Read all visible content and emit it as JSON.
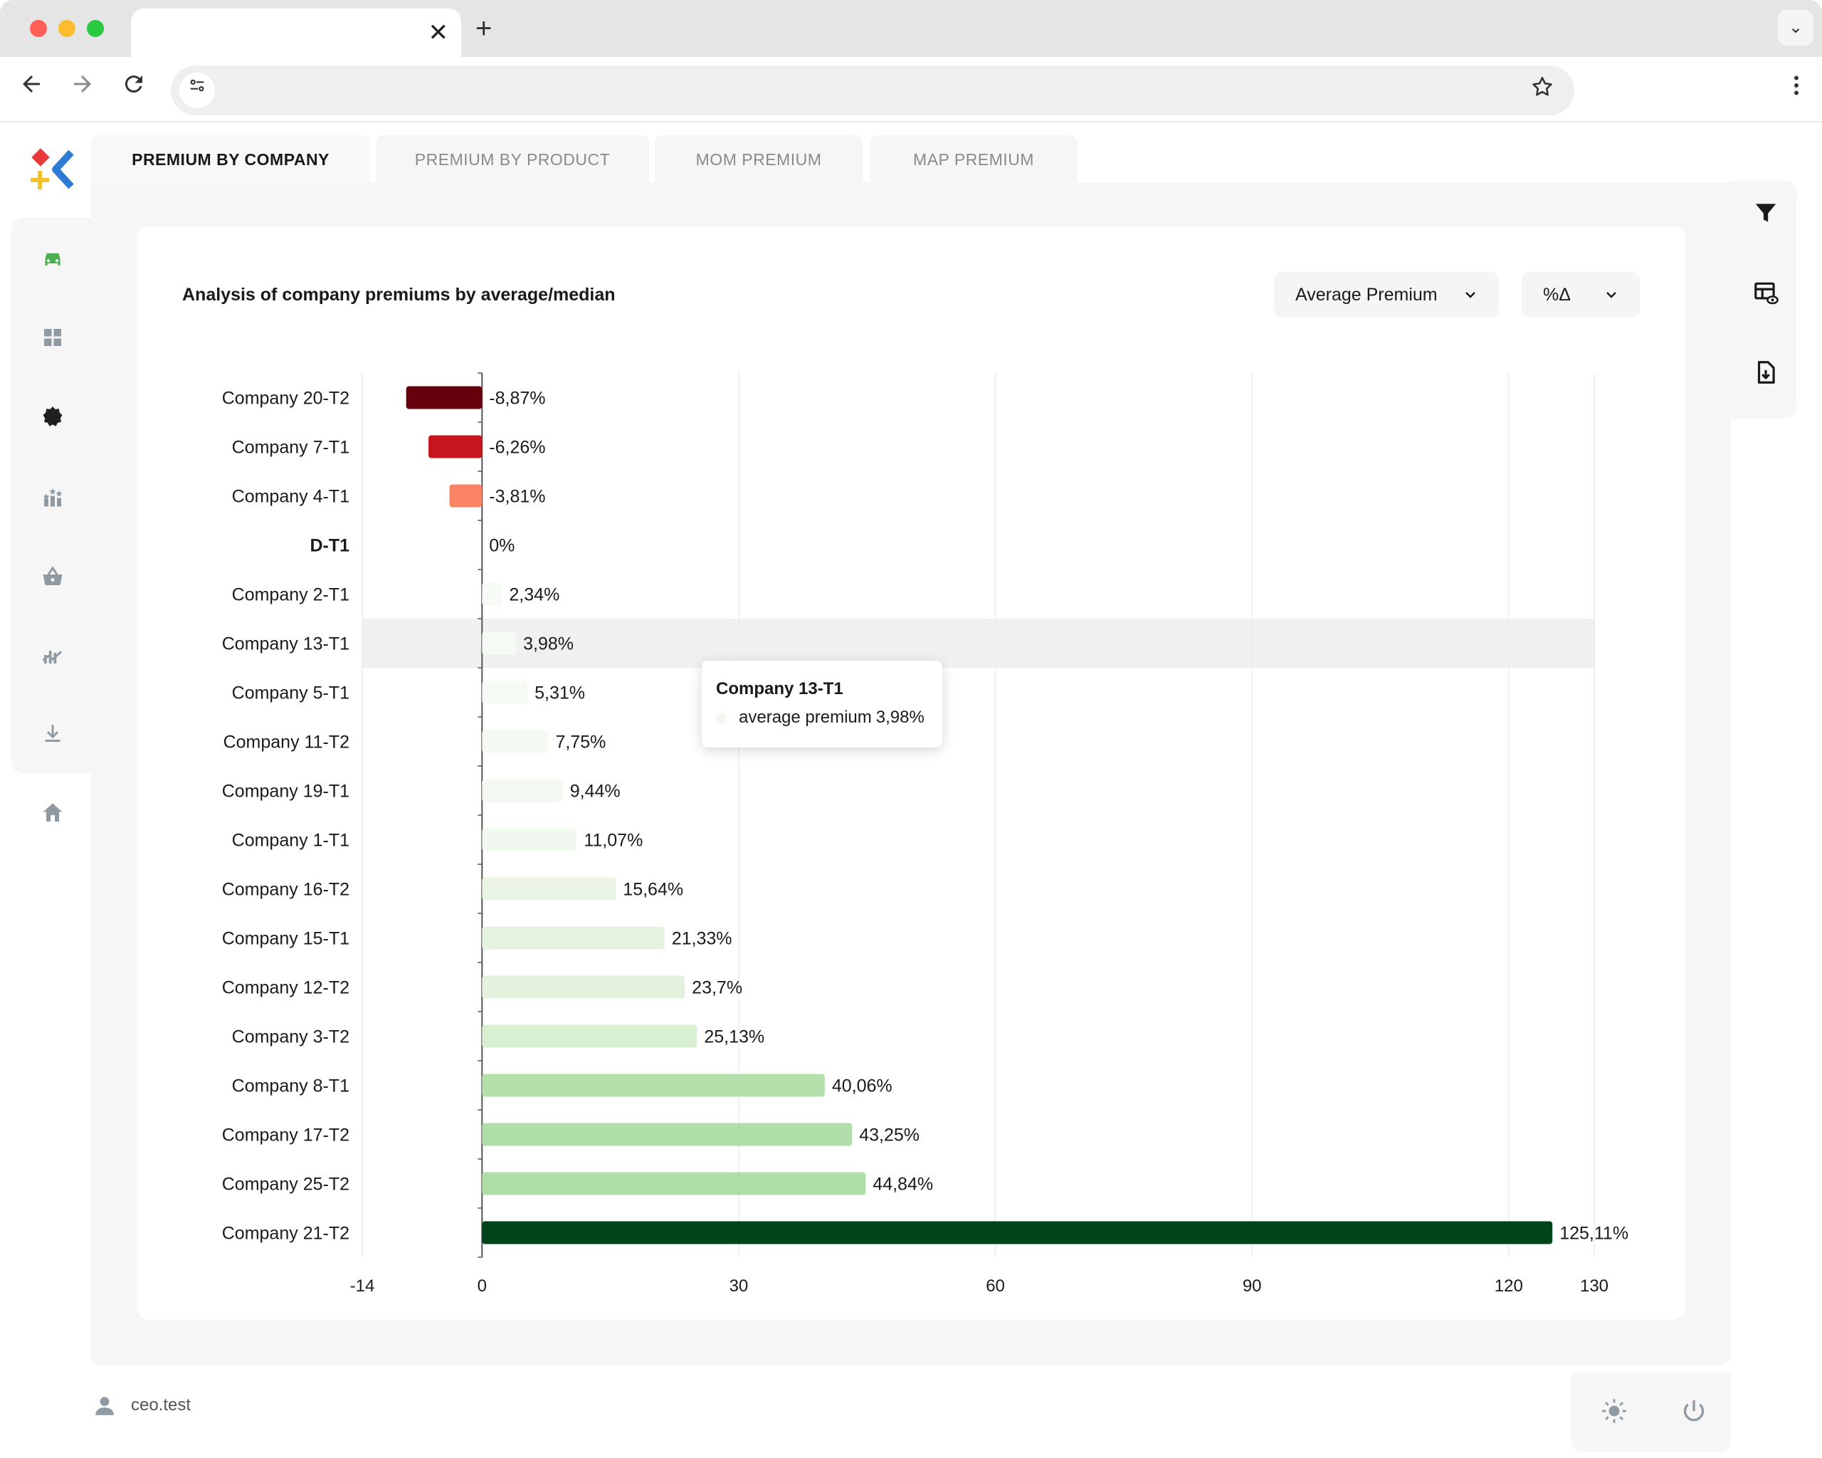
{
  "browser": {
    "tab_title": "",
    "url": "",
    "icons": {
      "close": "close-icon",
      "new_tab": "plus-icon",
      "back": "arrow-left-icon",
      "forward": "arrow-right-icon",
      "reload": "reload-icon",
      "site_settings": "tune-icon",
      "bookmark": "star-icon",
      "menu": "kebab-icon",
      "tab_search": "chevron-down-icon"
    }
  },
  "sidebar": {
    "items": [
      {
        "icon": "car-icon",
        "active": true
      },
      {
        "icon": "dashboard-icon"
      },
      {
        "icon": "badge-icon"
      },
      {
        "icon": "ranking-icon"
      },
      {
        "icon": "basket-icon"
      },
      {
        "icon": "trend-chart-icon"
      },
      {
        "icon": "download-icon"
      },
      {
        "icon": "home-icon"
      }
    ]
  },
  "tabs": [
    {
      "label": "PREMIUM BY COMPANY",
      "active": true
    },
    {
      "label": "PREMIUM BY PRODUCT"
    },
    {
      "label": "MOM PREMIUM"
    },
    {
      "label": "MAP PREMIUM"
    }
  ],
  "right_rail": {
    "icons": [
      "filter-icon",
      "table-view-icon",
      "export-file-icon"
    ]
  },
  "card": {
    "title": "Analysis of company premiums by average/median",
    "metric_select": {
      "value": "Average Premium"
    },
    "mode_select": {
      "value": "%Δ"
    }
  },
  "chart_data": {
    "type": "bar",
    "orientation": "horizontal",
    "title": "",
    "xlabel": "",
    "ylabel": "",
    "xlim": [
      -14,
      130
    ],
    "x_ticks": [
      -14,
      0,
      30,
      60,
      90,
      120,
      130
    ],
    "grid": true,
    "unit": "%",
    "baseline_category": "D-T1",
    "highlighted_category": "Company 13-T1",
    "categories": [
      "Company 20-T2",
      "Company 7-T1",
      "Company 4-T1",
      "D-T1",
      "Company 2-T1",
      "Company 13-T1",
      "Company 5-T1",
      "Company 11-T2",
      "Company 19-T1",
      "Company 1-T1",
      "Company 16-T2",
      "Company 15-T1",
      "Company 12-T2",
      "Company 3-T2",
      "Company 8-T1",
      "Company 17-T2",
      "Company 25-T2",
      "Company 21-T2"
    ],
    "series": [
      {
        "values": [
          -8.87,
          -6.26,
          -3.81,
          0,
          2.34,
          3.98,
          5.31,
          7.75,
          9.44,
          11.07,
          15.64,
          21.33,
          23.7,
          25.13,
          40.06,
          43.25,
          44.84,
          125.11
        ],
        "value_labels": [
          "-8,87%",
          "-6,26%",
          "-3,81%",
          "0%",
          "2,34%",
          "3,98%",
          "5,31%",
          "7,75%",
          "9,44%",
          "11,07%",
          "15,64%",
          "21,33%",
          "23,7%",
          "25,13%",
          "40,06%",
          "43,25%",
          "44,84%",
          "125,11%"
        ],
        "colors": [
          "#67000d",
          "#c4161c",
          "#fb8366",
          "#ffffff",
          "#f7fbf6",
          "#f6faf5",
          "#f5faf4",
          "#f4f9f2",
          "#f3f8f1",
          "#f1f8ef",
          "#eaf5e6",
          "#e6f3e1",
          "#e3f1de",
          "#d8efd1",
          "#b3e0ab",
          "#b0dea8",
          "#afdea7",
          "#00441b"
        ]
      }
    ]
  },
  "tooltip": {
    "title": "Company 13-T1",
    "series_name": "average premium",
    "value": "3,98%"
  },
  "footer": {
    "username": "ceo.test",
    "icons": [
      "user-icon",
      "sun-icon",
      "power-icon"
    ]
  }
}
